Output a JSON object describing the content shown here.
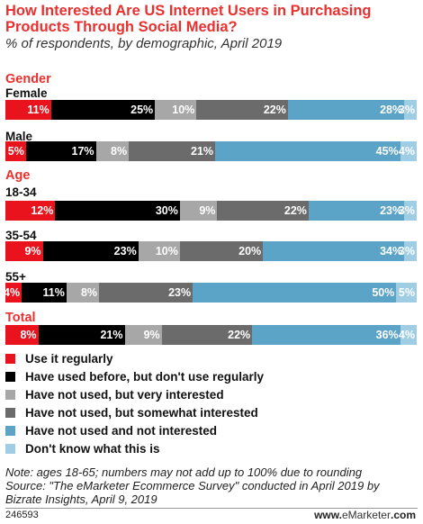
{
  "title": "How Interested Are US Internet Users in Purchasing Products Through Social Media?",
  "subtitle": "% of respondents, by demographic, April 2019",
  "chart_data": {
    "type": "bar",
    "stacked": "horizontal-100",
    "series": [
      {
        "name": "Use it regularly",
        "color": "#e8131d"
      },
      {
        "name": "Have used before, but don't use regularly",
        "color": "#000000"
      },
      {
        "name": "Have not used, but very interested",
        "color": "#a7a7a7"
      },
      {
        "name": "Have not used, but somewhat interested",
        "color": "#6b6b6b"
      },
      {
        "name": "Have not used and not interested",
        "color": "#5ba3c7"
      },
      {
        "name": "Don't know what this is",
        "color": "#9fcde4"
      }
    ],
    "groups": [
      {
        "label": "Gender",
        "rows": [
          {
            "label": "Female",
            "values": [
              11,
              25,
              10,
              22,
              28,
              3
            ],
            "labels": [
              "11%",
              "25%",
              "10%",
              "22%",
              "28%",
              "3%"
            ]
          },
          {
            "label": "Male",
            "values": [
              5,
              17,
              8,
              21,
              45,
              4
            ],
            "labels": [
              "5%",
              "17%",
              "8%",
              "21%",
              "45%",
              "4%"
            ]
          }
        ]
      },
      {
        "label": "Age",
        "rows": [
          {
            "label": "18-34",
            "values": [
              12,
              30,
              9,
              22,
              23,
              3
            ],
            "labels": [
              "12%",
              "30%",
              "9%",
              "22%",
              "23%",
              "3%"
            ]
          },
          {
            "label": "35-54",
            "values": [
              9,
              23,
              10,
              20,
              34,
              3
            ],
            "labels": [
              "9%",
              "23%",
              "10%",
              "20%",
              "34%",
              "3%"
            ]
          },
          {
            "label": "55+",
            "values": [
              4,
              11,
              8,
              23,
              50,
              5
            ],
            "labels": [
              "4%",
              "11%",
              "8%",
              "23%",
              "50%",
              "5%"
            ]
          }
        ]
      },
      {
        "label": "Total",
        "rows": [
          {
            "label": "",
            "values": [
              8,
              21,
              9,
              22,
              36,
              4
            ],
            "labels": [
              "8%",
              "21%",
              "9%",
              "22%",
              "36%",
              "4%"
            ]
          }
        ]
      }
    ]
  },
  "footnote": "Note: ages 18-65; numbers may not add up to 100% due to rounding\nSource: \"The eMarketer Ecommerce Survey\" conducted in April 2019 by Bizrate Insights, April 9, 2019",
  "chart_id": "246593",
  "brand": {
    "prefix": "www.",
    "name": "eMarketer",
    "suffix": ".com"
  }
}
